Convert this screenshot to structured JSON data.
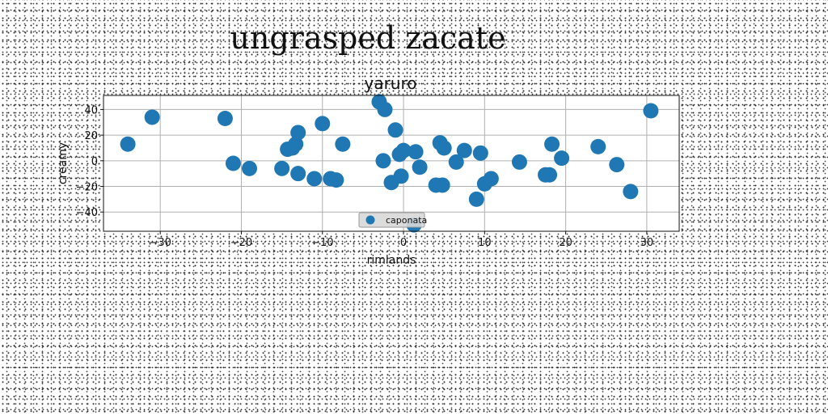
{
  "figure_title": "ungrasped zacate",
  "chart_data": {
    "type": "scatter",
    "title": "yaruro",
    "xlabel": "rimlands",
    "ylabel": "creamy",
    "xlim": [
      -37,
      34
    ],
    "ylim": [
      -55,
      51
    ],
    "xticks": [
      -30,
      -20,
      -10,
      0,
      10,
      20,
      30
    ],
    "yticks": [
      -40,
      -20,
      0,
      20,
      40
    ],
    "grid": true,
    "legend_placement": "lower-center",
    "color": "#1f77b4",
    "series": [
      {
        "name": "caponata",
        "points": [
          [
            -34,
            13
          ],
          [
            -31,
            34
          ],
          [
            -22,
            33
          ],
          [
            -21,
            -2
          ],
          [
            -19,
            -6
          ],
          [
            -15,
            -6
          ],
          [
            -14.3,
            9
          ],
          [
            -13.7,
            10
          ],
          [
            -13.3,
            13
          ],
          [
            -13,
            22
          ],
          [
            -13,
            -10
          ],
          [
            -11,
            -14
          ],
          [
            -10,
            29
          ],
          [
            -9,
            -14
          ],
          [
            -8.3,
            -15
          ],
          [
            -7.5,
            13
          ],
          [
            -3,
            46
          ],
          [
            -2.3,
            40
          ],
          [
            -2.5,
            0
          ],
          [
            -1.5,
            -17
          ],
          [
            -1,
            24
          ],
          [
            -0.5,
            5
          ],
          [
            0,
            8
          ],
          [
            -0.3,
            -12
          ],
          [
            1.5,
            7
          ],
          [
            2,
            -5
          ],
          [
            1.3,
            -50
          ],
          [
            4,
            -19
          ],
          [
            4.8,
            -19
          ],
          [
            4.5,
            14
          ],
          [
            5,
            10
          ],
          [
            6.5,
            -1
          ],
          [
            7.5,
            8
          ],
          [
            9,
            -30
          ],
          [
            9.5,
            6
          ],
          [
            10,
            -18
          ],
          [
            10.8,
            -14
          ],
          [
            14.3,
            -1
          ],
          [
            17.5,
            -11
          ],
          [
            18,
            -11
          ],
          [
            18.3,
            13
          ],
          [
            19.5,
            2
          ],
          [
            24,
            11
          ],
          [
            26.3,
            -3
          ],
          [
            28,
            -24
          ],
          [
            30.5,
            39
          ]
        ]
      }
    ]
  }
}
